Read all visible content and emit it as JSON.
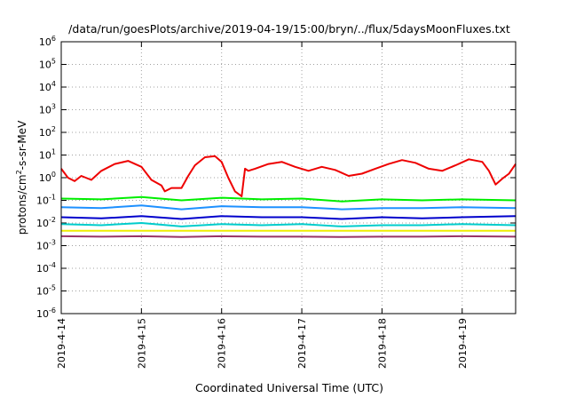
{
  "chart_data": {
    "type": "line",
    "title": "/data/run/goesPlots/archive/2019-04-19/15:00/bryn/../flux/5daysMoonFluxes.txt",
    "xlabel": "Coordinated Universal Time (UTC)",
    "ylabel_parts": [
      "protons/cm",
      "2",
      "-s-sr-MeV"
    ],
    "y_scale": "log",
    "ylim": [
      1e-06,
      1000000.0
    ],
    "y_ticks": [
      {
        "exp": "-6"
      },
      {
        "exp": "-5"
      },
      {
        "exp": "-4"
      },
      {
        "exp": "-3"
      },
      {
        "exp": "-2"
      },
      {
        "exp": "-1"
      },
      {
        "exp": "0"
      },
      {
        "exp": "1"
      },
      {
        "exp": "2"
      },
      {
        "exp": "3"
      },
      {
        "exp": "4"
      },
      {
        "exp": "5"
      },
      {
        "exp": "6"
      }
    ],
    "y_tick_base": "10",
    "xlim": [
      "2019-04-14T00:00",
      "2019-04-19T16:00"
    ],
    "x_ticks": [
      "2019-4-14",
      "2019-4-15",
      "2019-4-16",
      "2019-4-17",
      "2019-4-18",
      "2019-4-19"
    ],
    "grid": true,
    "series": [
      {
        "color": "#ee0000",
        "x": [
          "2019-04-14T00:00",
          "2019-04-14T02:00",
          "2019-04-14T04:00",
          "2019-04-14T06:00",
          "2019-04-14T09:00",
          "2019-04-14T12:00",
          "2019-04-14T16:00",
          "2019-04-14T20:00",
          "2019-04-15T00:00",
          "2019-04-15T03:00",
          "2019-04-15T06:00",
          "2019-04-15T07:00",
          "2019-04-15T09:00",
          "2019-04-15T12:00",
          "2019-04-15T14:00",
          "2019-04-15T16:00",
          "2019-04-15T19:00",
          "2019-04-15T22:00",
          "2019-04-16T00:00",
          "2019-04-16T02:00",
          "2019-04-16T04:00",
          "2019-04-16T06:00",
          "2019-04-16T07:00",
          "2019-04-16T08:00",
          "2019-04-16T10:00",
          "2019-04-16T14:00",
          "2019-04-16T18:00",
          "2019-04-16T22:00",
          "2019-04-17T02:00",
          "2019-04-17T06:00",
          "2019-04-17T10:00",
          "2019-04-17T14:00",
          "2019-04-17T18:00",
          "2019-04-17T22:00",
          "2019-04-18T02:00",
          "2019-04-18T06:00",
          "2019-04-18T10:00",
          "2019-04-18T14:00",
          "2019-04-18T18:00",
          "2019-04-18T22:00",
          "2019-04-19T02:00",
          "2019-04-19T06:00",
          "2019-04-19T08:00",
          "2019-04-19T10:00",
          "2019-04-19T12:00",
          "2019-04-19T14:00",
          "2019-04-19T16:00"
        ],
        "values": [
          2.5,
          1.0,
          0.7,
          1.2,
          0.8,
          2.0,
          4.0,
          5.5,
          3.0,
          0.8,
          0.45,
          0.25,
          0.35,
          0.35,
          1.2,
          3.5,
          8.0,
          9.0,
          5.0,
          1.0,
          0.25,
          0.15,
          2.5,
          2.0,
          2.5,
          4.0,
          5.0,
          3.0,
          2.0,
          3.0,
          2.2,
          1.2,
          1.5,
          2.5,
          4.0,
          6.0,
          4.5,
          2.5,
          2.0,
          3.5,
          6.5,
          5.0,
          2.0,
          0.5,
          0.9,
          1.5,
          4.0
        ]
      },
      {
        "color": "#00ee00",
        "x": [
          "2019-04-14T00:00",
          "2019-04-14T12:00",
          "2019-04-15T00:00",
          "2019-04-15T12:00",
          "2019-04-16T00:00",
          "2019-04-16T12:00",
          "2019-04-17T00:00",
          "2019-04-17T12:00",
          "2019-04-18T00:00",
          "2019-04-18T12:00",
          "2019-04-19T00:00",
          "2019-04-19T16:00"
        ],
        "values": [
          0.12,
          0.11,
          0.14,
          0.1,
          0.13,
          0.11,
          0.12,
          0.09,
          0.11,
          0.1,
          0.11,
          0.1
        ]
      },
      {
        "color": "#1e90ff",
        "x": [
          "2019-04-14T00:00",
          "2019-04-14T12:00",
          "2019-04-15T00:00",
          "2019-04-15T12:00",
          "2019-04-16T00:00",
          "2019-04-16T12:00",
          "2019-04-17T00:00",
          "2019-04-17T12:00",
          "2019-04-18T00:00",
          "2019-04-18T12:00",
          "2019-04-19T00:00",
          "2019-04-19T16:00"
        ],
        "values": [
          0.05,
          0.045,
          0.06,
          0.04,
          0.055,
          0.05,
          0.05,
          0.04,
          0.045,
          0.045,
          0.05,
          0.045
        ]
      },
      {
        "color": "#0000cc",
        "x": [
          "2019-04-14T00:00",
          "2019-04-14T12:00",
          "2019-04-15T00:00",
          "2019-04-15T12:00",
          "2019-04-16T00:00",
          "2019-04-16T12:00",
          "2019-04-17T00:00",
          "2019-04-17T12:00",
          "2019-04-18T00:00",
          "2019-04-18T12:00",
          "2019-04-19T00:00",
          "2019-04-19T16:00"
        ],
        "values": [
          0.018,
          0.016,
          0.02,
          0.015,
          0.02,
          0.018,
          0.018,
          0.015,
          0.018,
          0.016,
          0.018,
          0.02
        ]
      },
      {
        "color": "#00cccc",
        "x": [
          "2019-04-14T00:00",
          "2019-04-14T12:00",
          "2019-04-15T00:00",
          "2019-04-15T12:00",
          "2019-04-16T00:00",
          "2019-04-16T12:00",
          "2019-04-17T00:00",
          "2019-04-17T12:00",
          "2019-04-18T00:00",
          "2019-04-18T12:00",
          "2019-04-19T00:00",
          "2019-04-19T16:00"
        ],
        "values": [
          0.009,
          0.008,
          0.01,
          0.007,
          0.009,
          0.008,
          0.009,
          0.007,
          0.008,
          0.008,
          0.009,
          0.008
        ]
      },
      {
        "color": "#eeee00",
        "x": [
          "2019-04-14T00:00",
          "2019-04-19T16:00"
        ],
        "values": [
          0.0045,
          0.0045
        ]
      },
      {
        "color": "#993366",
        "x": [
          "2019-04-14T00:00",
          "2019-04-14T12:00",
          "2019-04-15T00:00",
          "2019-04-15T12:00",
          "2019-04-16T00:00",
          "2019-04-16T12:00",
          "2019-04-17T00:00",
          "2019-04-17T12:00",
          "2019-04-18T00:00",
          "2019-04-18T12:00",
          "2019-04-19T00:00",
          "2019-04-19T16:00"
        ],
        "values": [
          0.0026,
          0.0025,
          0.0026,
          0.0024,
          0.0026,
          0.0025,
          0.0025,
          0.0024,
          0.0025,
          0.0025,
          0.0026,
          0.0025
        ]
      }
    ]
  }
}
